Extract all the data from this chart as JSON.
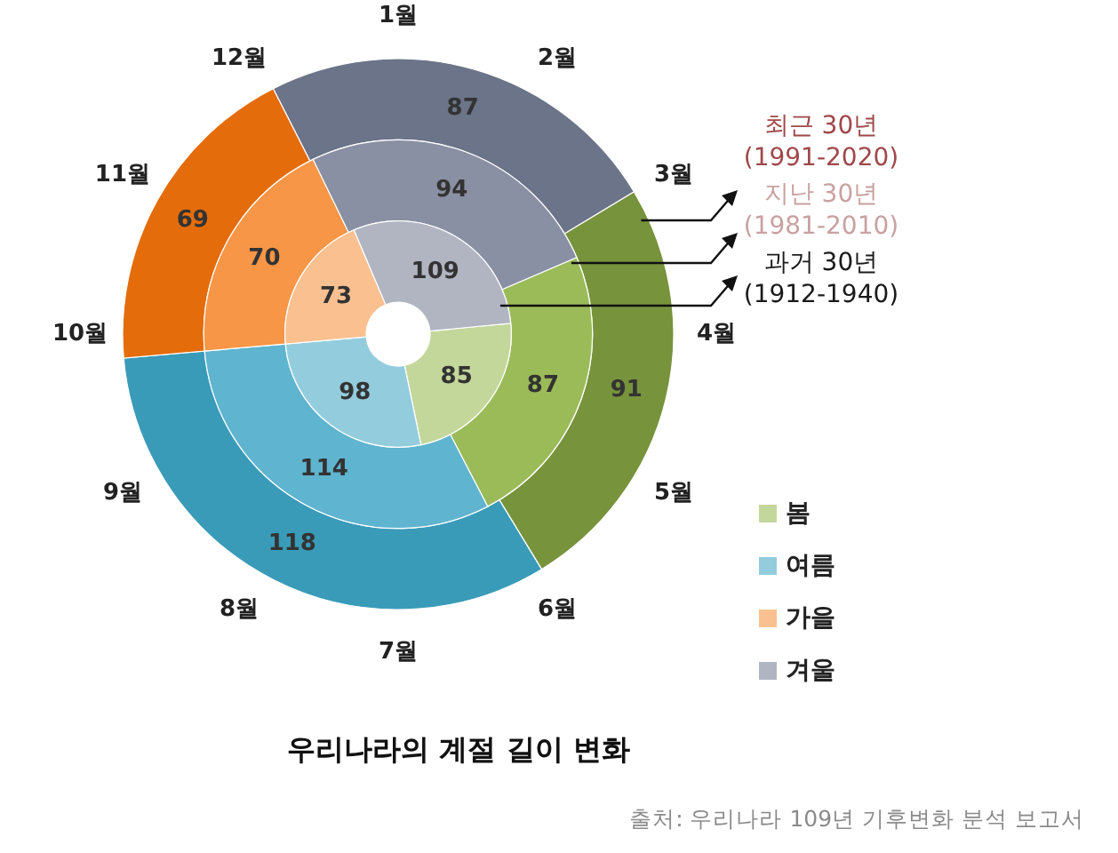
{
  "chart_data": {
    "type": "donut",
    "title": "우리나라의 계절 길이 변화",
    "categories": [
      "봄",
      "여름",
      "가을",
      "겨울"
    ],
    "series": [
      {
        "name": "최근 30년\n(1991-2020)",
        "values": [
          91,
          118,
          69,
          87
        ],
        "colors": [
          "#77933c",
          "#3a9bb9",
          "#e46c0a",
          "#6b7488"
        ]
      },
      {
        "name": "지난 30년\n(1981-2010)",
        "values": [
          87,
          114,
          70,
          94
        ],
        "colors": [
          "#9bbb59",
          "#5fb4cf",
          "#f79646",
          "#8a90a3"
        ]
      },
      {
        "name": "과거 30년\n(1912-1940)",
        "values": [
          85,
          98,
          73,
          109
        ],
        "colors": [
          "#c4d79b",
          "#93cddd",
          "#fac090",
          "#b1b5c2"
        ]
      }
    ],
    "annotations": [
      "1월",
      "2월",
      "3월",
      "4월",
      "5월",
      "6월",
      "7월",
      "8월",
      "9월",
      "10월",
      "11월",
      "12월",
      "출처: 우리나라 109년 기후변화 분석 보고서"
    ],
    "data_labels": true,
    "legend": "right"
  }
}
